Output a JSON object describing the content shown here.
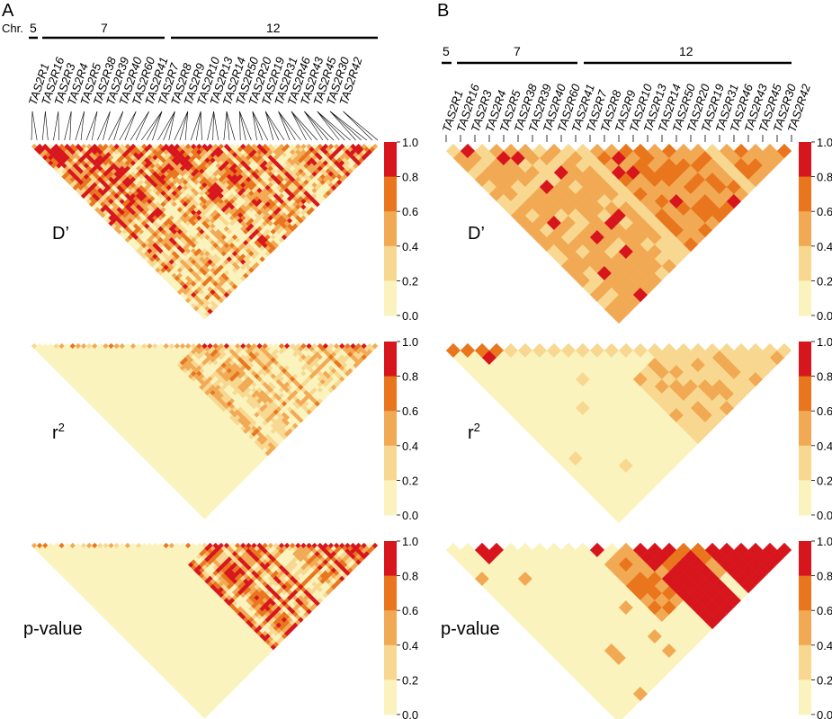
{
  "panels": [
    {
      "id": "A",
      "letter": "A",
      "chromosome_prefix": "Chr."
    },
    {
      "id": "B",
      "letter": "B",
      "chromosome_prefix": ""
    }
  ],
  "chromosomes": [
    {
      "name": "5",
      "genes": [
        "TAS2R1"
      ]
    },
    {
      "name": "7",
      "genes": [
        "TAS2R16",
        "TAS2R3",
        "TAS2R4",
        "TAS2R5",
        "TAS2R38",
        "TAS2R39",
        "TAS2R40",
        "TAS2R60",
        "TAS2R41"
      ]
    },
    {
      "name": "12",
      "genes": [
        "TAS2R7",
        "TAS2R8",
        "TAS2R9",
        "TAS2R10",
        "TAS2R13",
        "TAS2R14",
        "TAS2R50",
        "TAS2R20",
        "TAS2R19",
        "TAS2R31",
        "TAS2R46",
        "TAS2R43",
        "TAS2R45",
        "TAS2R30",
        "TAS2R42"
      ]
    }
  ],
  "metrics": [
    {
      "id": "dprime",
      "label": "D’"
    },
    {
      "id": "r2",
      "label": "r",
      "sup": "2"
    },
    {
      "id": "pvalue",
      "label": "p-value"
    }
  ],
  "color_scale": {
    "ticks": [
      "1.0",
      "0.8",
      "0.6",
      "0.4",
      "0.2",
      "0.0"
    ],
    "bins": [
      "#fbf3bd",
      "#f8d890",
      "#f2a954",
      "#e9751d",
      "#d7151c"
    ]
  }
}
